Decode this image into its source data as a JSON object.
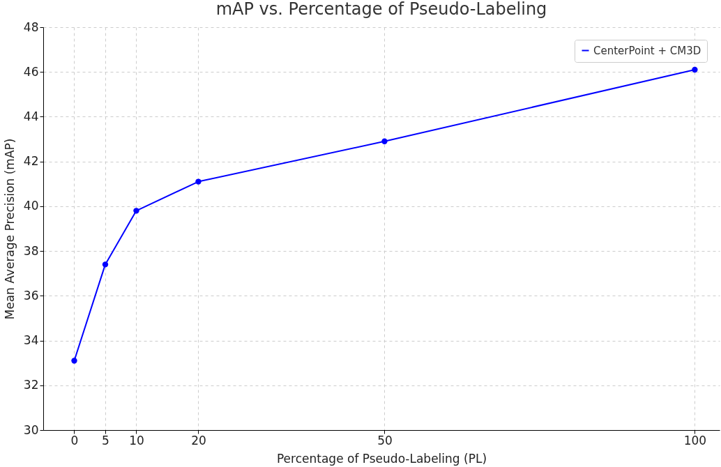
{
  "chart_data": {
    "type": "line",
    "title": "mAP vs. Percentage of Pseudo-Labeling",
    "xlabel": "Percentage of Pseudo-Labeling (PL)",
    "ylabel": "Mean Average Precision (mAP)",
    "x": [
      0,
      5,
      10,
      20,
      50,
      100
    ],
    "series": [
      {
        "name": "CenterPoint + CM3D",
        "color": "#0000ff",
        "values": [
          33.1,
          37.4,
          39.8,
          41.1,
          42.9,
          46.1
        ]
      }
    ],
    "xlim": [
      -5,
      104
    ],
    "xticks": [
      0,
      5,
      10,
      20,
      50,
      100
    ],
    "ylim": [
      30,
      48
    ],
    "yticks": [
      30,
      32,
      34,
      36,
      38,
      40,
      42,
      44,
      46,
      48
    ],
    "grid": true,
    "legend": "top right",
    "marker": "circle",
    "line_style": "solid"
  }
}
